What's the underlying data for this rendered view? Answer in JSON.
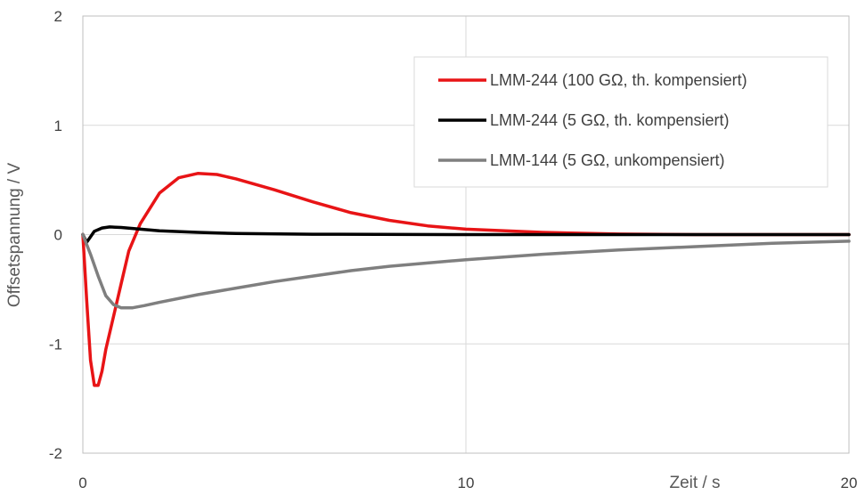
{
  "chart_data": {
    "type": "line",
    "title": "",
    "xlabel": "Zeit / s",
    "ylabel": "Offsetspannung / V",
    "xlim": [
      0,
      20
    ],
    "ylim": [
      -2,
      2
    ],
    "x_ticks": [
      0,
      10,
      20
    ],
    "y_ticks": [
      -2,
      -1,
      0,
      1,
      2
    ],
    "grid": "major gridlines on both axes",
    "legend_position": "top-right",
    "series": [
      {
        "name": "LMM-244 (100 GΩ, th. kompensiert)",
        "color": "#e81416",
        "points": [
          [
            0,
            0
          ],
          [
            0.1,
            -0.6
          ],
          [
            0.2,
            -1.15
          ],
          [
            0.3,
            -1.38
          ],
          [
            0.4,
            -1.38
          ],
          [
            0.5,
            -1.25
          ],
          [
            0.6,
            -1.05
          ],
          [
            0.8,
            -0.75
          ],
          [
            1.0,
            -0.45
          ],
          [
            1.2,
            -0.15
          ],
          [
            1.5,
            0.1
          ],
          [
            2.0,
            0.38
          ],
          [
            2.5,
            0.52
          ],
          [
            3.0,
            0.56
          ],
          [
            3.5,
            0.55
          ],
          [
            4.0,
            0.51
          ],
          [
            5.0,
            0.41
          ],
          [
            6.0,
            0.3
          ],
          [
            7.0,
            0.2
          ],
          [
            8.0,
            0.13
          ],
          [
            9.0,
            0.08
          ],
          [
            10.0,
            0.05
          ],
          [
            12.0,
            0.02
          ],
          [
            14.0,
            0.005
          ],
          [
            16.0,
            0.0
          ],
          [
            20.0,
            0.0
          ]
        ]
      },
      {
        "name": "LMM-244 (5 GΩ, th. kompensiert)",
        "color": "#000000",
        "points": [
          [
            0,
            0
          ],
          [
            0.1,
            -0.07
          ],
          [
            0.2,
            -0.02
          ],
          [
            0.3,
            0.03
          ],
          [
            0.5,
            0.06
          ],
          [
            0.7,
            0.07
          ],
          [
            1.0,
            0.065
          ],
          [
            1.5,
            0.05
          ],
          [
            2.0,
            0.035
          ],
          [
            3.0,
            0.02
          ],
          [
            4.0,
            0.01
          ],
          [
            6.0,
            0.003
          ],
          [
            10.0,
            0.0
          ],
          [
            20.0,
            0.0
          ]
        ]
      },
      {
        "name": "LMM-144 (5 GΩ, unkompensiert)",
        "color": "#7f7f7f",
        "points": [
          [
            0,
            0
          ],
          [
            0.2,
            -0.18
          ],
          [
            0.4,
            -0.38
          ],
          [
            0.6,
            -0.56
          ],
          [
            0.8,
            -0.64
          ],
          [
            1.0,
            -0.67
          ],
          [
            1.3,
            -0.67
          ],
          [
            1.6,
            -0.65
          ],
          [
            2.0,
            -0.62
          ],
          [
            3.0,
            -0.55
          ],
          [
            4.0,
            -0.49
          ],
          [
            5.0,
            -0.43
          ],
          [
            6.0,
            -0.38
          ],
          [
            7.0,
            -0.33
          ],
          [
            8.0,
            -0.29
          ],
          [
            9.0,
            -0.26
          ],
          [
            10.0,
            -0.23
          ],
          [
            12.0,
            -0.18
          ],
          [
            14.0,
            -0.14
          ],
          [
            16.0,
            -0.11
          ],
          [
            18.0,
            -0.08
          ],
          [
            20.0,
            -0.06
          ]
        ]
      }
    ]
  }
}
